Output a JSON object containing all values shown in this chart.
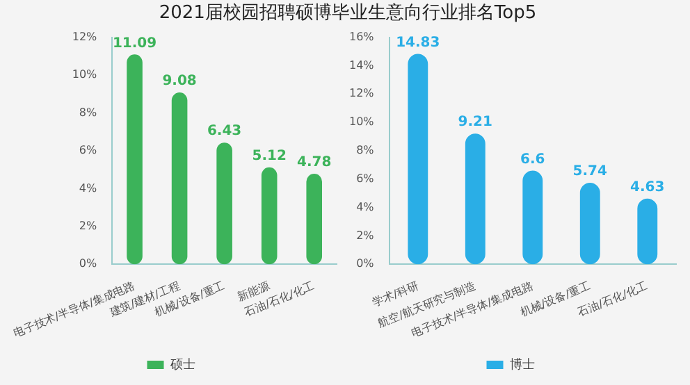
{
  "chart_data": [
    {
      "type": "bar",
      "title": "2021届校园招聘硕博毕业生意向行业排名Top5",
      "categories": [
        "电子技术/半导体/集成电路",
        "建筑/建材/工程",
        "机械/设备/重工",
        "新能源",
        "石油/石化/化工"
      ],
      "series": [
        {
          "name": "硕士",
          "color": "#3cb35a",
          "values": [
            11.09,
            9.08,
            6.43,
            5.12,
            4.78
          ]
        }
      ],
      "ylim": [
        0,
        12
      ],
      "yticks": [
        {
          "value": 0,
          "label": "0%"
        },
        {
          "value": 2,
          "label": "2%"
        },
        {
          "value": 4,
          "label": "4%"
        },
        {
          "value": 6,
          "label": "6%"
        },
        {
          "value": 8,
          "label": "8%"
        },
        {
          "value": 10,
          "label": "10%"
        },
        {
          "value": 12,
          "label": "12%"
        }
      ],
      "data_labels": true,
      "legend": "bottom",
      "grid": false
    },
    {
      "type": "bar",
      "categories": [
        "学术/科研",
        "航空/航天研究与制造",
        "电子技术/半导体/集成电路",
        "机械/设备/重工",
        "石油/石化/化工"
      ],
      "series": [
        {
          "name": "博士",
          "color": "#2aaee6",
          "values": [
            14.83,
            9.21,
            6.6,
            5.74,
            4.63
          ]
        }
      ],
      "ylim": [
        0,
        16
      ],
      "yticks": [
        {
          "value": 0,
          "label": "0%"
        },
        {
          "value": 2,
          "label": "2%"
        },
        {
          "value": 4,
          "label": "4%"
        },
        {
          "value": 6,
          "label": "6%"
        },
        {
          "value": 8,
          "label": "8%"
        },
        {
          "value": 10,
          "label": "10%"
        },
        {
          "value": 12,
          "label": "12%"
        },
        {
          "value": 14,
          "label": "14%"
        },
        {
          "value": 16,
          "label": "16%"
        }
      ],
      "data_labels": true,
      "legend": "bottom",
      "grid": false
    }
  ]
}
